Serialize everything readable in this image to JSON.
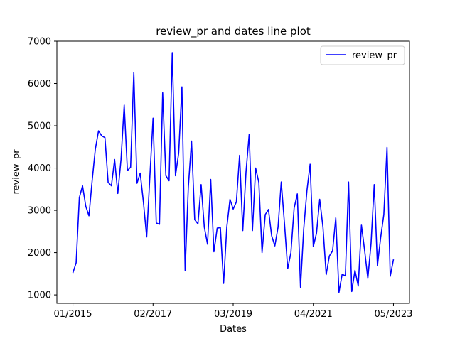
{
  "chart_data": {
    "type": "line",
    "title": "review_pr and dates line plot",
    "xlabel": "Dates",
    "ylabel": "review_pr",
    "ylim": [
      800,
      7000
    ],
    "yticks": [
      1000,
      2000,
      3000,
      4000,
      5000,
      6000,
      7000
    ],
    "xticks": [
      {
        "label": "01/2015",
        "x": 0
      },
      {
        "label": "02/2017",
        "x": 25
      },
      {
        "label": "03/2019",
        "x": 50
      },
      {
        "label": "04/2021",
        "x": 75
      },
      {
        "label": "05/2023",
        "x": 100
      }
    ],
    "xlim": [
      -5,
      105
    ],
    "series": [
      {
        "name": "review_pr",
        "color": "#0000ff",
        "values": [
          1520,
          1760,
          3300,
          3580,
          3100,
          2870,
          3700,
          4450,
          4880,
          4760,
          4720,
          3660,
          3580,
          4200,
          3400,
          4200,
          5490,
          3940,
          4020,
          6260,
          3640,
          3880,
          3200,
          2370,
          3800,
          5180,
          2700,
          2670,
          5780,
          3820,
          3700,
          6730,
          3820,
          4350,
          5920,
          1580,
          3550,
          4640,
          2780,
          2680,
          3610,
          2600,
          2200,
          3730,
          2020,
          2580,
          2590,
          1270,
          2600,
          3260,
          3030,
          3200,
          4300,
          2520,
          3900,
          4800,
          2520,
          4000,
          3660,
          2000,
          2900,
          3020,
          2400,
          2160,
          2600,
          3670,
          2700,
          1620,
          2000,
          3050,
          3390,
          1180,
          2560,
          3460,
          4090,
          2140,
          2460,
          3260,
          2600,
          1480,
          1920,
          2040,
          2820,
          1060,
          1490,
          1450,
          3670,
          1080,
          1580,
          1210,
          2650,
          2050,
          1390,
          2210,
          3610,
          1690,
          2350,
          2900,
          4490,
          1440,
          1840
        ]
      }
    ],
    "legend": {
      "position": "top-right"
    }
  }
}
